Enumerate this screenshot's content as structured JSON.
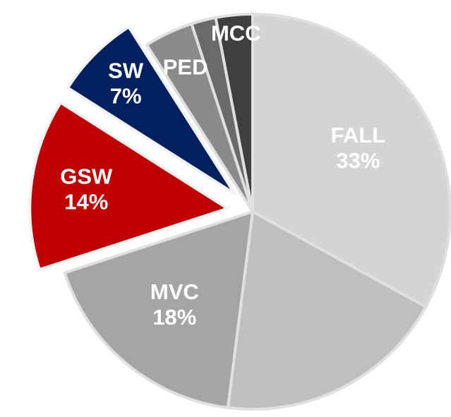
{
  "chart_data": {
    "type": "pie",
    "categories": [
      "FALL",
      null,
      "MVC",
      "GSW",
      "SW",
      "PED",
      null,
      "MCC"
    ],
    "values": [
      33,
      19,
      18,
      14,
      7,
      4,
      2,
      3
    ],
    "value_labels": [
      "33%",
      null,
      "18%",
      "14%",
      "7%",
      null,
      null,
      null
    ],
    "colors": [
      "#d4d4d4",
      "#bfbfbf",
      "#a5a5a5",
      "#c00000",
      "#002060",
      "#8a8a8a",
      "#6a6a6a",
      "#3f3f3f"
    ],
    "exploded": [
      false,
      false,
      false,
      true,
      true,
      false,
      false,
      false
    ]
  }
}
